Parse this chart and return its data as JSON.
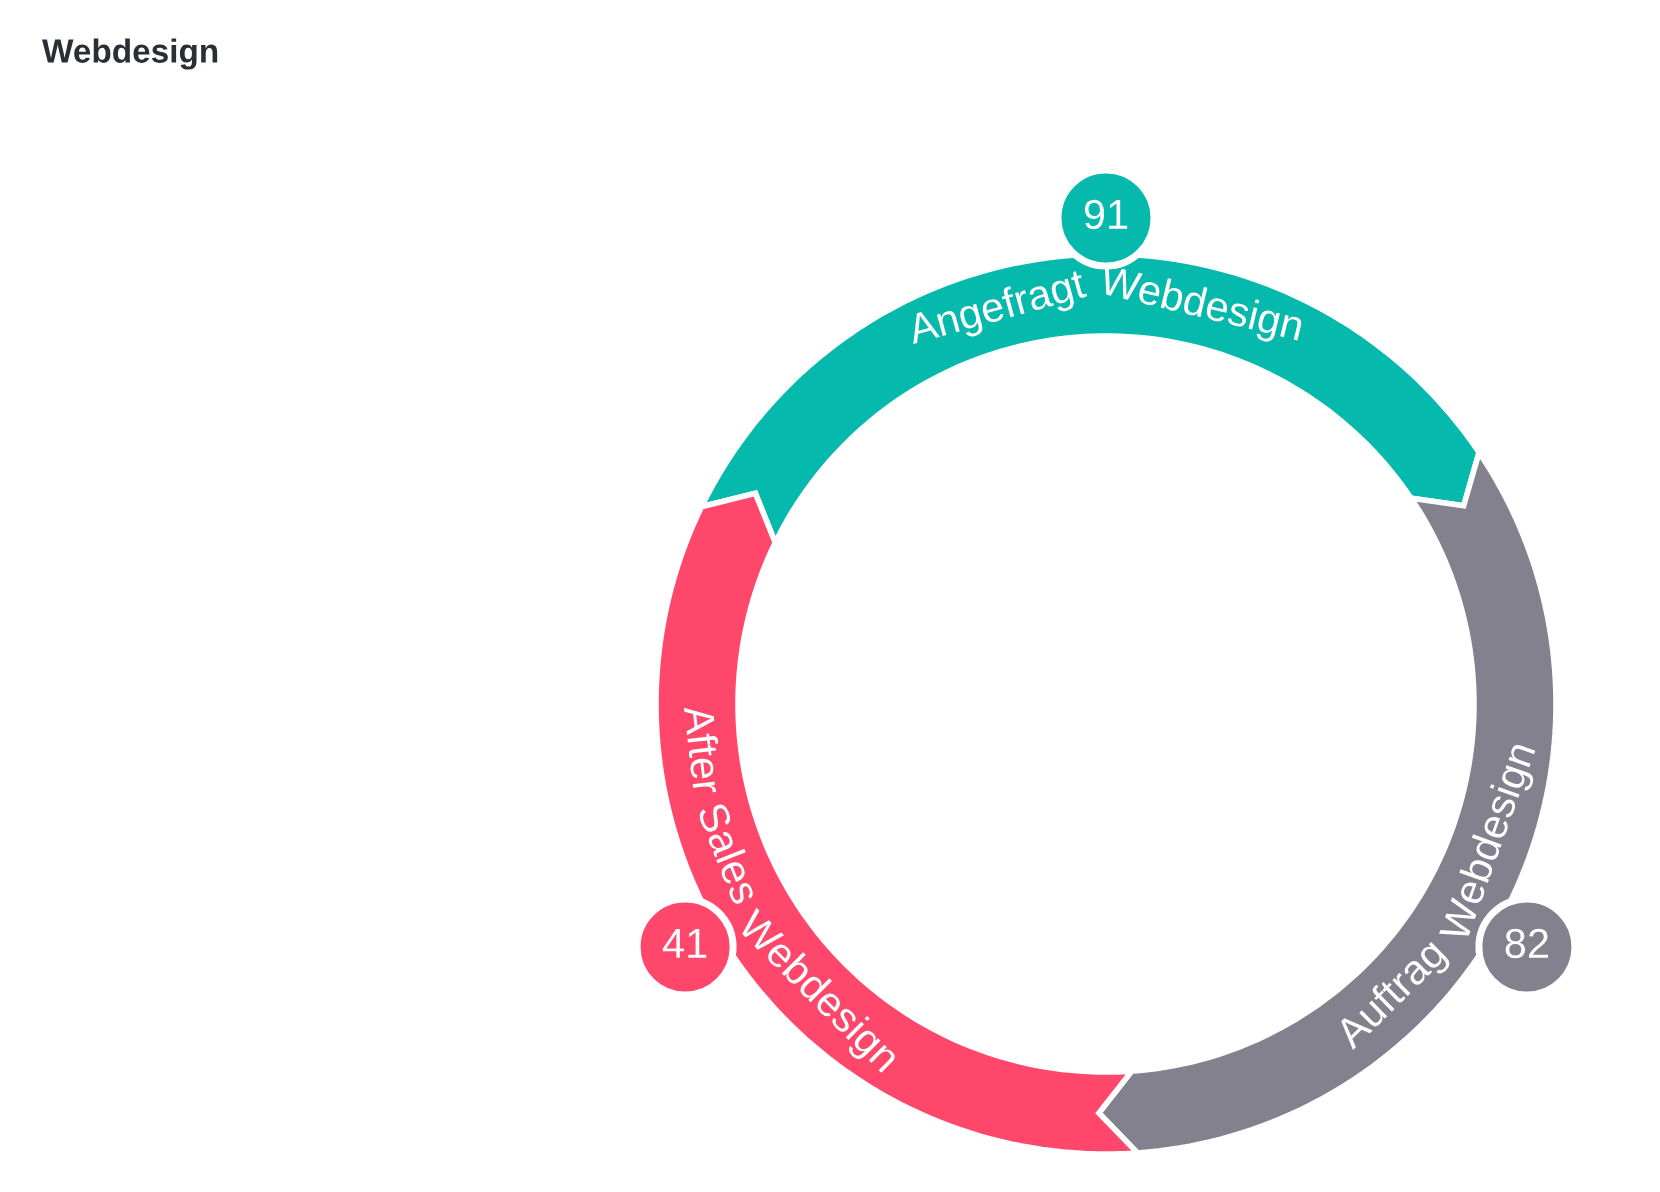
{
  "chart_data": {
    "type": "other",
    "title": "Webdesign",
    "categories": [
      "Angefragt Webdesign",
      "Auftrag Webdesign",
      "After Sales Webdesign"
    ],
    "values": [
      91,
      82,
      41
    ],
    "colors": [
      "#06b9ad",
      "#84818e",
      "#fe476b"
    ],
    "data_labels": true
  }
}
